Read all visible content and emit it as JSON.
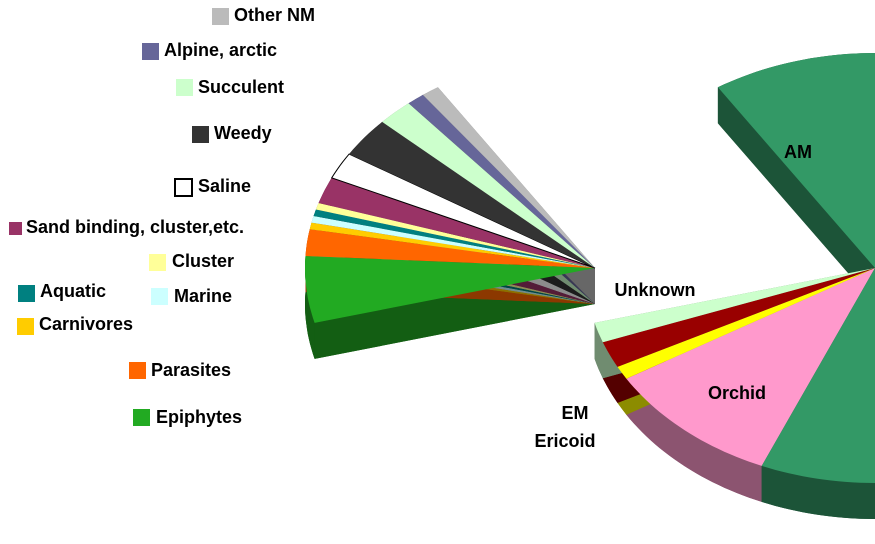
{
  "chart_data": {
    "type": "pie",
    "categories": [
      "Orchid",
      "Ericoid",
      "EM",
      "Unknown",
      "Epiphytes",
      "Parasites",
      "Carnivores",
      "Marine",
      "Aquatic",
      "Cluster",
      "Sand binding, cluster,etc.",
      "Saline",
      "Weedy",
      "Succulent",
      "Alpine, arctic",
      "Other NM",
      "AM"
    ],
    "values": [
      10,
      1,
      2,
      1.5,
      5,
      2,
      0.5,
      0.5,
      0.5,
      0.5,
      2,
      2,
      3,
      2,
      1,
      1,
      65.5
    ],
    "colors": [
      "#ff99cc",
      "#ffff00",
      "#990000",
      "#ccffcc",
      "#22aa22",
      "#ff6600",
      "#ffcc00",
      "#ccffff",
      "#008080",
      "#ffff99",
      "#993366",
      "#ffffff",
      "#333333",
      "#ccffcc",
      "#666699",
      "#bbbbbb",
      "#339966"
    ]
  }
}
